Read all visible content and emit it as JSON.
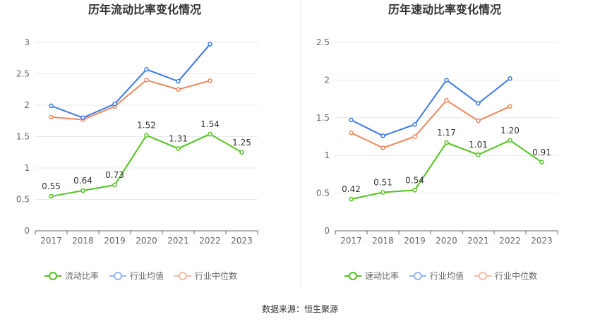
{
  "source_text": "数据来源：恒生聚源",
  "chart_data": [
    {
      "type": "line",
      "title": "历年流动比率变化情况",
      "categories": [
        "2017",
        "2018",
        "2019",
        "2020",
        "2021",
        "2022",
        "2023"
      ],
      "ylim": [
        0,
        3
      ],
      "yticks": [
        "0",
        "0.5",
        "1",
        "1.5",
        "2",
        "2.5",
        "3"
      ],
      "grid": true,
      "legend_position": "bottom",
      "series": [
        {
          "name": "流动比率",
          "color": "#52c41a",
          "values": [
            0.55,
            0.64,
            0.73,
            1.52,
            1.31,
            1.54,
            1.25
          ],
          "labels": [
            "0.55",
            "0.64",
            "0.73",
            "1.52",
            "1.31",
            "1.54",
            "1.25"
          ]
        },
        {
          "name": "行业均值",
          "color": "#3b78e7",
          "values": [
            1.99,
            1.8,
            2.02,
            2.57,
            2.38,
            2.97,
            null
          ]
        },
        {
          "name": "行业中位数",
          "color": "#f0875a",
          "values": [
            1.81,
            1.77,
            1.98,
            2.4,
            2.25,
            2.39,
            null
          ]
        }
      ]
    },
    {
      "type": "line",
      "title": "历年速动比率变化情况",
      "categories": [
        "2017",
        "2018",
        "2019",
        "2020",
        "2021",
        "2022",
        "2023"
      ],
      "ylim": [
        0,
        2.5
      ],
      "yticks": [
        "0",
        "0.5",
        "1",
        "1.5",
        "2",
        "2.5"
      ],
      "grid": true,
      "legend_position": "bottom",
      "series": [
        {
          "name": "速动比率",
          "color": "#52c41a",
          "values": [
            0.42,
            0.51,
            0.54,
            1.17,
            1.01,
            1.2,
            0.91
          ],
          "labels": [
            "0.42",
            "0.51",
            "0.54",
            "1.17",
            "1.01",
            "1.20",
            "0.91"
          ]
        },
        {
          "name": "行业均值",
          "color": "#3b78e7",
          "values": [
            1.47,
            1.26,
            1.41,
            2.0,
            1.69,
            2.02,
            null
          ]
        },
        {
          "name": "行业中位数",
          "color": "#f0875a",
          "values": [
            1.3,
            1.1,
            1.25,
            1.73,
            1.46,
            1.65,
            null
          ]
        }
      ]
    }
  ]
}
